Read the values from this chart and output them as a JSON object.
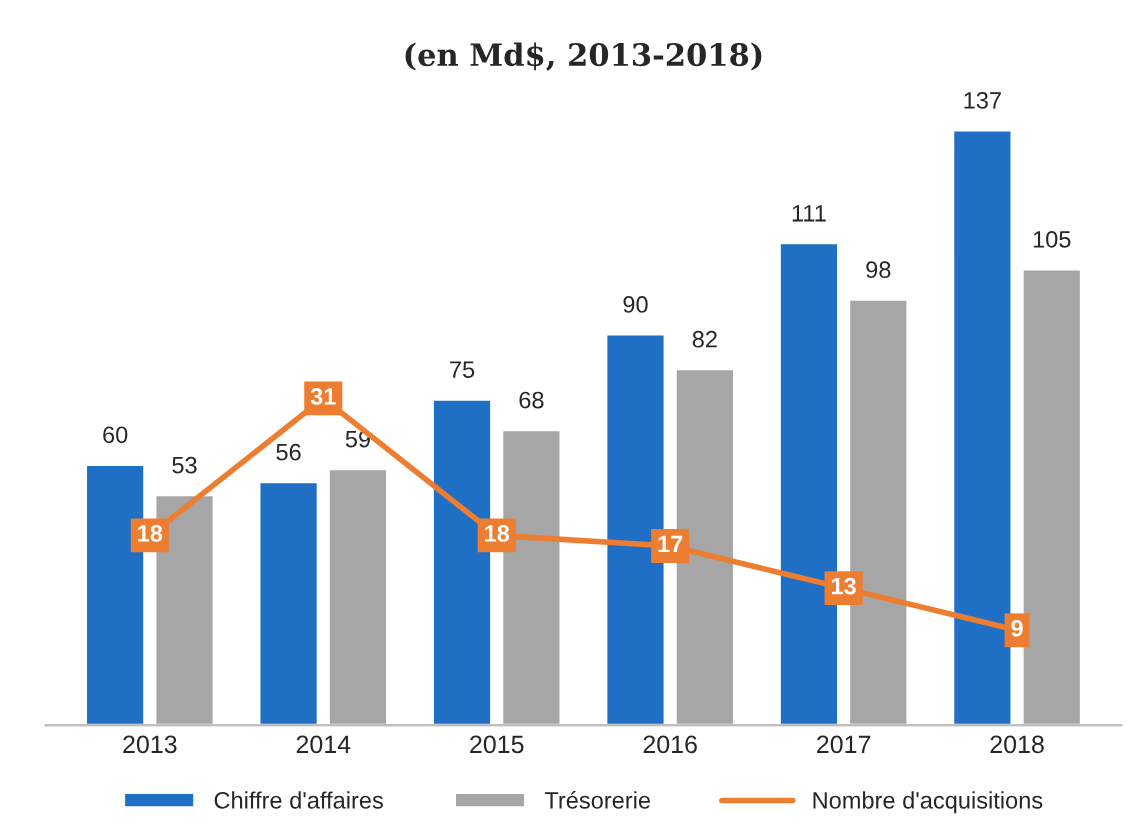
{
  "chart_data": {
    "type": "bar",
    "title": "(en Md$, 2013-2018)",
    "categories": [
      "2013",
      "2014",
      "2015",
      "2016",
      "2017",
      "2018"
    ],
    "series": [
      {
        "name": "Chiffre d'affaires",
        "color": "#1f6fc5",
        "values": [
          60,
          56,
          75,
          90,
          111,
          137
        ]
      },
      {
        "name": "Trésorerie",
        "color": "#a6a6a6",
        "values": [
          53,
          59,
          68,
          82,
          98,
          105
        ]
      },
      {
        "name": "Nombre d'acquisitions",
        "type": "line",
        "axis": "y2",
        "color": "#ed7d31",
        "values": [
          18,
          31,
          18,
          17,
          13,
          9
        ]
      }
    ],
    "tick_labels": "x",
    "data_labels": true,
    "grid": false,
    "legend": "bottom",
    "marker": "square"
  }
}
